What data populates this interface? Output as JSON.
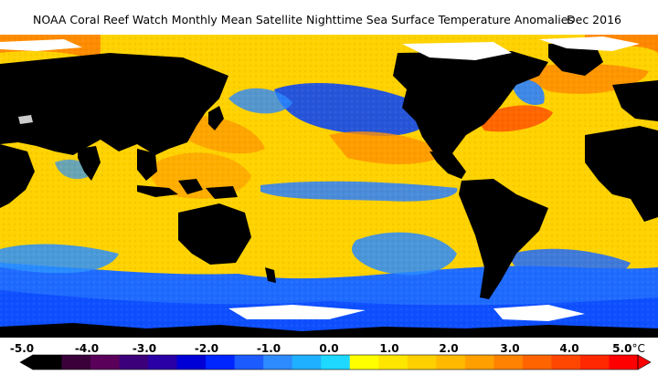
{
  "title": "NOAA Coral Reef Watch Monthly Mean Satellite Nighttime Sea Surface Temperature Anomalies",
  "date": "Dec 2016",
  "unit": "°C",
  "legend": {
    "ticks": [
      "-5.0",
      "-4.0",
      "-3.0",
      "-2.0",
      "-1.0",
      "0.0",
      "1.0",
      "2.0",
      "3.0",
      "4.0",
      "5.0"
    ],
    "range": [
      -5.0,
      5.0
    ],
    "colors": [
      "#000000",
      "#3a003a",
      "#5a005a",
      "#3c007a",
      "#2a00a6",
      "#0000d6",
      "#0026ff",
      "#1c5cff",
      "#2e8bff",
      "#1fb0ff",
      "#1ed8ff",
      "#ffff00",
      "#ffe600",
      "#ffd000",
      "#ffba00",
      "#ffa000",
      "#ff8200",
      "#ff6400",
      "#ff4600",
      "#ff2800",
      "#ff0000"
    ]
  },
  "colors": {
    "land": "#000000",
    "ice": "#ffffff",
    "neutral_ocean": "#ffd200",
    "cool_anomaly": "#1f6bff",
    "warm_anomaly": "#ff7a00"
  }
}
